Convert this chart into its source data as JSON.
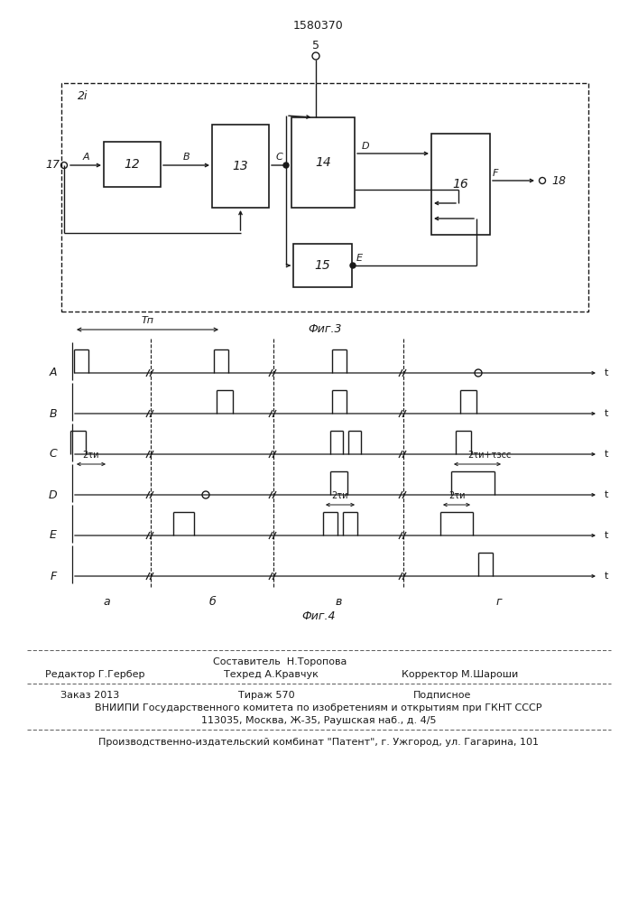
{
  "title": "1580370",
  "fig3_label": "Фиг.3",
  "fig4_label": "Фиг.4",
  "block_2i": "2i",
  "block_12": "12",
  "block_13": "13",
  "block_14": "14",
  "block_15": "15",
  "block_16": "16",
  "node_5": "5",
  "node_17": "17",
  "node_18": "18",
  "label_A": "A",
  "label_B": "B",
  "label_C": "C",
  "label_D": "D",
  "label_E": "E",
  "label_F": "F",
  "signal_labels": [
    "A",
    "B",
    "C",
    "D",
    "E",
    "F"
  ],
  "section_labels": [
    "а",
    "б",
    "в",
    "г"
  ],
  "text_Tn": "Tп",
  "text_2tau_D": "2τи",
  "text_2tau_E1": "2τи",
  "text_2tau_E2": "2τи",
  "text_2tau_tau": "2τи+τзсс",
  "footer_sestavitel": "Составитель  Н.Торопова",
  "footer_redaktor": "Редактор Г.Гербер",
  "footer_tehred": "Техред А.Кравчук",
  "footer_korrektor": "Корректор М.Шароши",
  "footer_zakaz": "Заказ 2013",
  "footer_tirazh": "Тираж 570",
  "footer_podpisnoe": "Подписное",
  "footer_vniipи": "ВНИИПИ Государственного комитета по изобретениям и открытиям при ГКНТ СССР",
  "footer_addr": "113035, Москва, Ж-35, Раушская наб., д. 4/5",
  "footer_kombinat": "Производственно-издательский комбинат \"Патент\", г. Ужгород, ул. Гагарина, 101",
  "bg_color": "#ffffff",
  "line_color": "#1a1a1a"
}
